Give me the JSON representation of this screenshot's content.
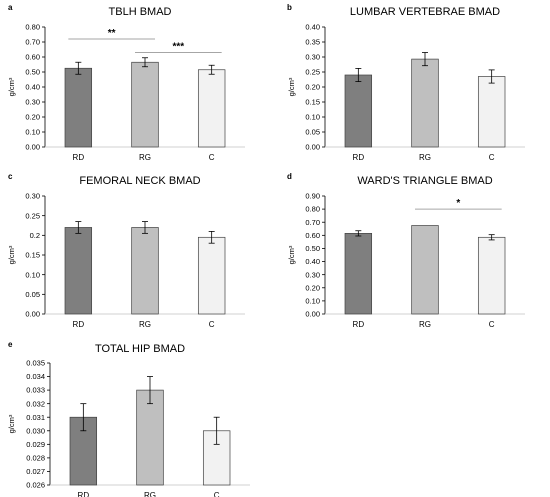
{
  "chart_data": [
    {
      "panel": "a",
      "type": "bar",
      "title": "TBLH BMAD",
      "ylabel": "g/cm³",
      "ylim": [
        0,
        0.8
      ],
      "yticks": [
        "0.00",
        "0.10",
        "0.20",
        "0.30",
        "0.40",
        "0.50",
        "0.60",
        "0.70",
        "0.80"
      ],
      "categories": [
        "RD",
        "RG",
        "C"
      ],
      "values": [
        0.525,
        0.565,
        0.515
      ],
      "errors": [
        0.04,
        0.03,
        0.03
      ],
      "colors": [
        "#7f7f7f",
        "#bfbfbf",
        "#f2f2f2"
      ],
      "significance": [
        {
          "from": 0,
          "to": 1,
          "label": "**",
          "y": 0.72
        },
        {
          "from": 1,
          "to": 2,
          "label": "***",
          "y": 0.63
        }
      ]
    },
    {
      "panel": "b",
      "type": "bar",
      "title": "LUMBAR VERTEBRAE BMAD",
      "ylabel": "g/cm³",
      "ylim": [
        0,
        0.4
      ],
      "yticks": [
        "0.00",
        "0.05",
        "0.10",
        "0.15",
        "0.20",
        "0.25",
        "0.30",
        "0.35",
        "0.40"
      ],
      "categories": [
        "RD",
        "RG",
        "C"
      ],
      "values": [
        0.24,
        0.293,
        0.235
      ],
      "errors": [
        0.022,
        0.022,
        0.022
      ],
      "colors": [
        "#7f7f7f",
        "#bfbfbf",
        "#f2f2f2"
      ],
      "significance": []
    },
    {
      "panel": "c",
      "type": "bar",
      "title": "FEMORAL NECK BMAD",
      "ylabel": "g/cm³",
      "ylim": [
        0,
        0.3
      ],
      "yticks": [
        "0.00",
        "0.05",
        "0.10",
        "0.15",
        "0.2",
        "0.25",
        "0.30"
      ],
      "categories": [
        "RD",
        "RG",
        "C"
      ],
      "values": [
        0.22,
        0.22,
        0.195
      ],
      "errors": [
        0.015,
        0.015,
        0.015
      ],
      "colors": [
        "#7f7f7f",
        "#bfbfbf",
        "#f2f2f2"
      ],
      "significance": []
    },
    {
      "panel": "d",
      "type": "bar",
      "title": "WARD'S TRIANGLE BMAD",
      "ylabel": "g/cm³",
      "ylim": [
        0,
        0.9
      ],
      "yticks": [
        "0.00",
        "0.10",
        "0.20",
        "0.30",
        "0.40",
        "0.50",
        "0.60",
        "0.70",
        "0.80",
        "0.90"
      ],
      "categories": [
        "RD",
        "RG",
        "C"
      ],
      "values": [
        0.615,
        0.675,
        0.585
      ],
      "errors": [
        0.02,
        0.0,
        0.02
      ],
      "colors": [
        "#7f7f7f",
        "#bfbfbf",
        "#f2f2f2"
      ],
      "significance": [
        {
          "from": 1,
          "to": 2,
          "label": "*",
          "y": 0.8
        }
      ]
    },
    {
      "panel": "e",
      "type": "bar",
      "title": "TOTAL HIP BMAD",
      "ylabel": "g/cm³",
      "ylim": [
        0.026,
        0.035
      ],
      "yticks": [
        "0.026",
        "0.027",
        "0.028",
        "0.029",
        "0.030",
        "0.031",
        "0.032",
        "0.033",
        "0.034",
        "0.035"
      ],
      "categories": [
        "RD",
        "RG",
        "C"
      ],
      "values": [
        0.031,
        0.033,
        0.03
      ],
      "errors": [
        0.001,
        0.001,
        0.001
      ],
      "colors": [
        "#7f7f7f",
        "#bfbfbf",
        "#f2f2f2"
      ],
      "significance": []
    }
  ]
}
